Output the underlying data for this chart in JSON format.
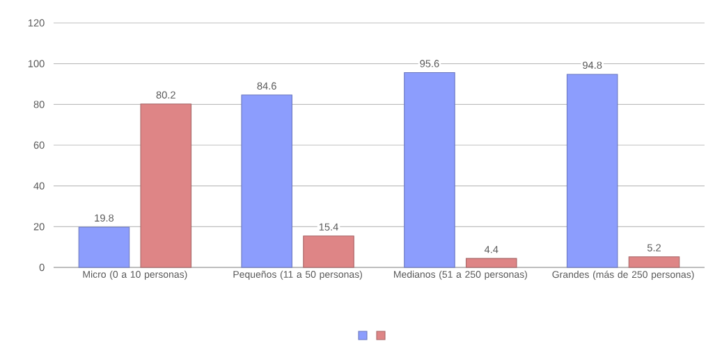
{
  "chart_data": {
    "type": "bar",
    "categories": [
      "Micro (0 a 10 personas)",
      "Pequeños (11 a 50 personas)",
      "Medianos (51 a 250 personas)",
      "Grandes (más de 250 personas)"
    ],
    "series": [
      {
        "color": "#8c9dfd",
        "values": [
          19.8,
          84.6,
          95.6,
          94.8
        ]
      },
      {
        "color": "#de8586",
        "values": [
          80.2,
          15.4,
          4.4,
          5.2
        ]
      }
    ],
    "ylim": [
      0,
      120
    ],
    "yticks": [
      0,
      20,
      40,
      60,
      80,
      100,
      120
    ],
    "grid": "y",
    "data_labels": true
  }
}
